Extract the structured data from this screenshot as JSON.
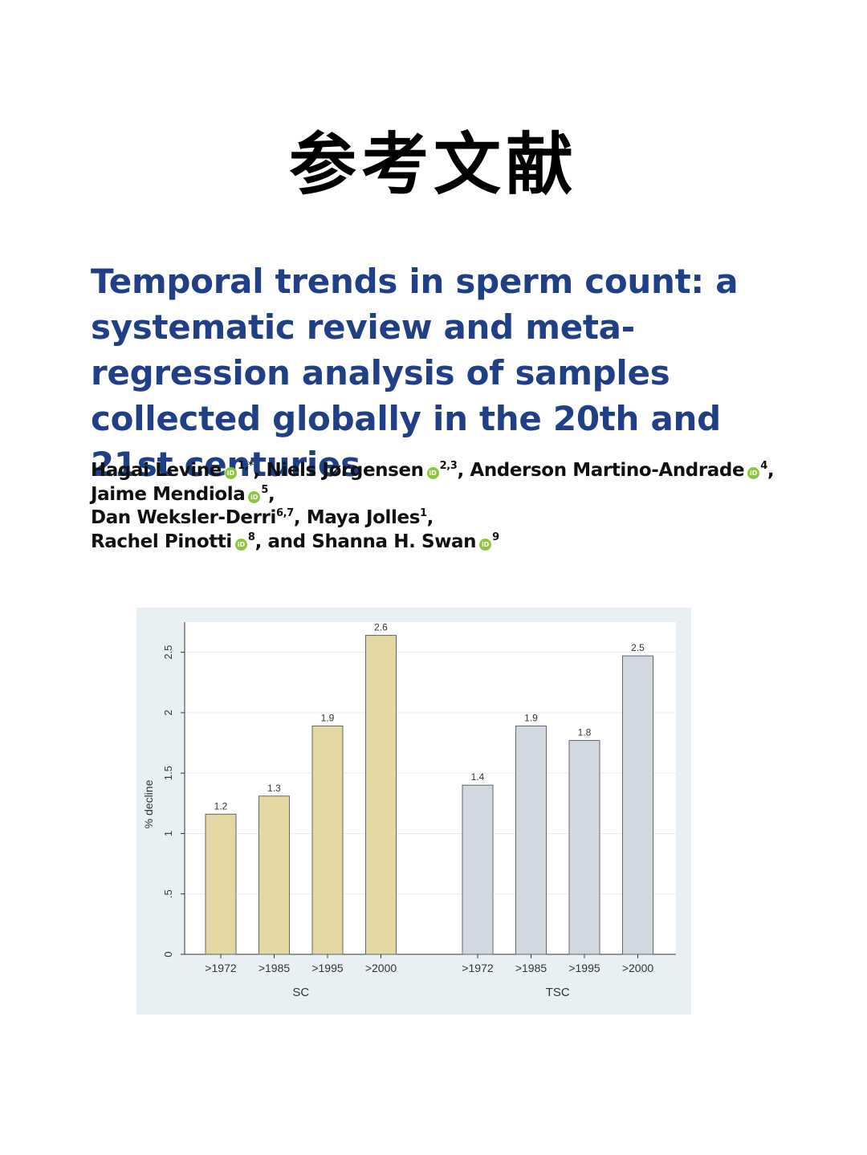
{
  "heading": "参考文献",
  "paper": {
    "title": "Temporal trends in sperm count: a systematic review and meta-regression analysis of samples collected globally in the 20th and 21st centuries",
    "title_color": "#1f3f86",
    "authors": [
      {
        "name": "Hagai Levine",
        "orcid": true,
        "affil": "1,*",
        "sep": ", "
      },
      {
        "name": "Niels Jørgensen",
        "orcid": true,
        "affil": "2,3",
        "sep": ", "
      },
      {
        "name": "Anderson Martino-Andrade",
        "orcid": true,
        "affil": "4",
        "sep": ", "
      },
      {
        "name": "Jaime Mendiola",
        "orcid": true,
        "affil": "5",
        "sep": ", "
      },
      {
        "name": "Dan Weksler-Derri",
        "orcid": false,
        "affil": "6,7",
        "sep": ", "
      },
      {
        "name": "Maya Jolles",
        "orcid": false,
        "affil": "1",
        "sep": ", "
      },
      {
        "name": "Rachel Pinotti",
        "orcid": true,
        "affil": "8",
        "sep": ", and "
      },
      {
        "name": "Shanna H. Swan",
        "orcid": true,
        "affil": "9",
        "sep": ""
      }
    ],
    "orcid_label": "iD"
  },
  "chart_data": {
    "type": "bar",
    "ylabel": "% decline",
    "ylim": [
      0,
      2.75
    ],
    "yticks": [
      "0",
      ".5",
      "1",
      "1.5",
      "2",
      "2.5"
    ],
    "grid": true,
    "groups": [
      {
        "name": "SC",
        "color": "#e3d7a3",
        "categories": [
          ">1972",
          ">1985",
          ">1995",
          ">2000"
        ],
        "values": [
          1.16,
          1.31,
          1.89,
          2.64
        ],
        "labels": [
          "1.2",
          "1.3",
          "1.9",
          "2.6"
        ]
      },
      {
        "name": "TSC",
        "color": "#d2d8e2",
        "categories": [
          ">1972",
          ">1985",
          ">1995",
          ">2000"
        ],
        "values": [
          1.4,
          1.89,
          1.77,
          2.47
        ],
        "labels": [
          "1.4",
          "1.9",
          "1.8",
          "2.5"
        ]
      }
    ]
  }
}
